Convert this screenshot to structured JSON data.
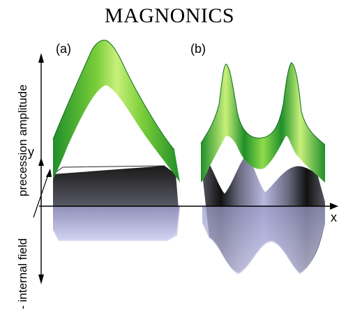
{
  "title": "MAGNONICS",
  "panels": {
    "a": "(a)",
    "b": "(b)"
  },
  "axes": {
    "y_label": "y",
    "x_label": "x",
    "upper_label": "precession amplitude",
    "lower_label": "- internal field"
  },
  "colors": {
    "amplitude_green_light": "#c8f07a",
    "amplitude_green_dark": "#1f8f2a",
    "surface_dark": "#2a2a2a",
    "surface_lavender": "#c4c4ec"
  }
}
